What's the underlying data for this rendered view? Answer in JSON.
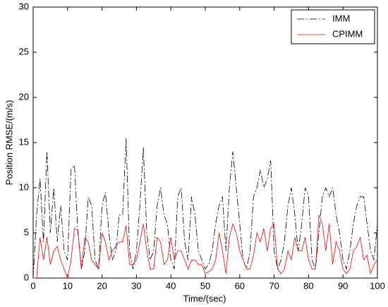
{
  "chart_data": {
    "type": "line",
    "xlabel": "Time/(sec)",
    "ylabel": "Position RMSE/(m/s)",
    "x": [
      0,
      1,
      2,
      3,
      4,
      5,
      6,
      7,
      8,
      9,
      10,
      11,
      12,
      13,
      14,
      15,
      16,
      17,
      18,
      19,
      20,
      21,
      22,
      23,
      24,
      25,
      26,
      27,
      28,
      29,
      30,
      31,
      32,
      33,
      34,
      35,
      36,
      37,
      38,
      39,
      40,
      41,
      42,
      43,
      44,
      45,
      46,
      47,
      48,
      49,
      50,
      51,
      52,
      53,
      54,
      55,
      56,
      57,
      58,
      59,
      60,
      61,
      62,
      63,
      64,
      65,
      66,
      67,
      68,
      69,
      70,
      71,
      72,
      73,
      74,
      75,
      76,
      77,
      78,
      79,
      80,
      81,
      82,
      83,
      84,
      85,
      86,
      87,
      88,
      89,
      90,
      91,
      92,
      93,
      94,
      95,
      96,
      97,
      98,
      99,
      100
    ],
    "series": [
      {
        "name": "IMM",
        "color": "#000000",
        "dash": true,
        "values": [
          0,
          7,
          11,
          4,
          14,
          5,
          10,
          4,
          8,
          3,
          2,
          12,
          12.5,
          5,
          1,
          3,
          9,
          8,
          2,
          1,
          8,
          9.5,
          5,
          2,
          3,
          7,
          7,
          15.5,
          3,
          1,
          3,
          8,
          14.5,
          5,
          2,
          3,
          8,
          10,
          7,
          6,
          2,
          1,
          9,
          10,
          4,
          2,
          9,
          7,
          3,
          2,
          1,
          1.5,
          3,
          6,
          8,
          9,
          3,
          10,
          14,
          10,
          6,
          2,
          1,
          3,
          9,
          10,
          12,
          10,
          11,
          13,
          3,
          1,
          2,
          4,
          8,
          10,
          7,
          3,
          6,
          10,
          9,
          2,
          1,
          5,
          9,
          10,
          9,
          10,
          7,
          5,
          2,
          1,
          3,
          6,
          8,
          9,
          9,
          6,
          3,
          2,
          6
        ]
      },
      {
        "name": "CPIMM",
        "color": "#ff0000",
        "dash": false,
        "values": [
          0,
          0,
          4.5,
          2,
          4.5,
          1.5,
          3,
          3.5,
          2,
          1,
          0,
          2,
          5.5,
          5.3,
          1,
          4.5,
          4,
          2,
          1.5,
          1,
          5,
          4,
          2,
          3,
          3.5,
          4,
          4,
          5.8,
          1.5,
          1.5,
          2,
          4,
          6,
          3,
          1,
          1,
          4.5,
          4,
          1.5,
          2,
          4.5,
          2,
          3,
          3,
          2,
          1,
          2,
          2,
          1.5,
          1.5,
          0.5,
          0.7,
          1,
          2,
          5,
          3,
          0.5,
          4.5,
          6,
          5,
          3,
          2,
          1,
          1,
          2.5,
          5,
          4,
          5.5,
          3,
          5.5,
          6,
          1,
          0.5,
          1,
          3,
          2,
          4.5,
          3,
          3,
          4.5,
          2,
          1,
          1,
          7,
          6,
          3,
          6,
          1.5,
          4,
          3,
          1,
          0.5,
          1,
          3,
          3.5,
          4.5,
          2,
          2.5,
          0.5,
          1.5,
          2
        ]
      }
    ],
    "xlim": [
      0,
      100
    ],
    "xticks": [
      0,
      10,
      20,
      30,
      40,
      50,
      60,
      70,
      80,
      90,
      100
    ],
    "ylim": [
      0,
      30
    ],
    "yticks": [
      0,
      5,
      10,
      15,
      20,
      25,
      30
    ],
    "grid": false,
    "legend": "upper right"
  }
}
